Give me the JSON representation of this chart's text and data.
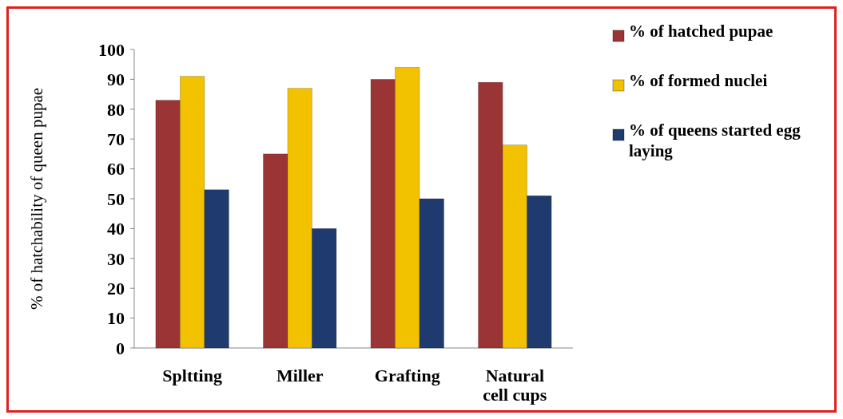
{
  "chart_data": {
    "type": "bar",
    "ylabel": "% of hatchability of queen pupae",
    "categories": [
      "Spltting",
      "Miller",
      "Grafting",
      "Natural cell cups"
    ],
    "series": [
      {
        "name": "% of hatched pupae",
        "color": "#9b3535",
        "values": [
          83,
          65,
          90,
          89
        ]
      },
      {
        "name": "% of formed nuclei",
        "color": "#f2c200",
        "values": [
          91,
          87,
          94,
          68
        ]
      },
      {
        "name": "% of queens started egg laying",
        "color": "#1f3a6e",
        "values": [
          53,
          40,
          50,
          51
        ]
      }
    ],
    "ylim": [
      0,
      100
    ],
    "yticks": [
      0,
      10,
      20,
      30,
      40,
      50,
      60,
      70,
      80,
      90,
      100
    ],
    "legend": "top right"
  }
}
